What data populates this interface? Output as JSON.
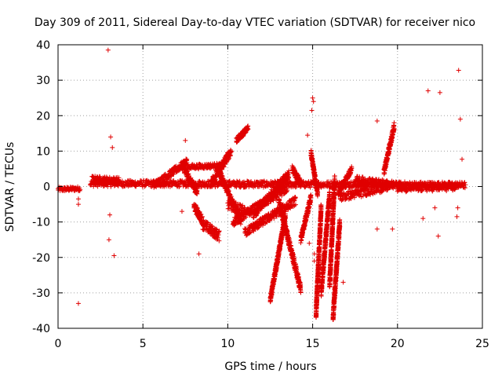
{
  "chart_data": {
    "type": "scatter",
    "title": "Day 309 of 2011, Sidereal Day-to-day VTEC variation (SDTVAR) for receiver nico",
    "xlabel": "GPS time / hours",
    "ylabel": "SDTVAR / TECUs",
    "xlim": [
      0,
      25
    ],
    "ylim": [
      -40,
      40
    ],
    "xticks": [
      0,
      5,
      10,
      15,
      20,
      25
    ],
    "yticks": [
      -40,
      -30,
      -20,
      -10,
      0,
      10,
      20,
      30,
      40
    ],
    "grid": true,
    "marker": "+",
    "series_color": "#e00000",
    "series": [
      {
        "name": "SDTVAR",
        "points": [
          [
            1.2,
            -33
          ],
          [
            2.95,
            38.5
          ],
          [
            3.0,
            -15
          ],
          [
            3.3,
            -19.5
          ],
          [
            3.1,
            14
          ],
          [
            3.2,
            11
          ],
          [
            3.05,
            -8
          ],
          [
            1.2,
            -5
          ],
          [
            1.2,
            -3.5
          ],
          [
            22.4,
            -14
          ],
          [
            22.5,
            26.5
          ],
          [
            21.8,
            27
          ],
          [
            23.6,
            32.8
          ],
          [
            23.7,
            19
          ],
          [
            23.8,
            7.7
          ],
          [
            23.5,
            -8.5
          ],
          [
            23.55,
            -6
          ],
          [
            18.8,
            18.5
          ],
          [
            19.8,
            18
          ],
          [
            15.0,
            25
          ],
          [
            15.05,
            24
          ],
          [
            14.7,
            14.5
          ],
          [
            14.95,
            21.5
          ],
          [
            8.3,
            -19
          ],
          [
            7.5,
            13
          ],
          [
            7.3,
            -7
          ],
          [
            14.8,
            -16
          ],
          [
            15.1,
            -19
          ],
          [
            16.8,
            -27
          ],
          [
            15.1,
            -21
          ],
          [
            19.7,
            -12
          ],
          [
            18.8,
            -12
          ],
          [
            20.5,
            -1.5
          ],
          [
            21.5,
            -9
          ],
          [
            22.2,
            -6
          ]
        ],
        "segments": [
          {
            "x": [
              0.0,
              1.3
            ],
            "y": [
              -0.8,
              -0.6
            ],
            "spread": 0.6
          },
          {
            "x": [
              1.9,
              24.0
            ],
            "y": [
              0.9,
              0.4
            ],
            "spread": 0.9
          },
          {
            "x": [
              2.0,
              3.6
            ],
            "y": [
              2.2,
              1.8
            ],
            "spread": 0.8
          },
          {
            "x": [
              5.6,
              7.6
            ],
            "y": [
              0.2,
              7.0
            ],
            "spread": 1.0
          },
          {
            "x": [
              7.3,
              8.2
            ],
            "y": [
              6.0,
              -1.8
            ],
            "spread": 1.0
          },
          {
            "x": [
              7.6,
              9.8
            ],
            "y": [
              5.5,
              6.0
            ],
            "spread": 0.7
          },
          {
            "x": [
              8.0,
              8.5
            ],
            "y": [
              -5.5,
              -9.5
            ],
            "spread": 1.2
          },
          {
            "x": [
              8.5,
              9.5
            ],
            "y": [
              -10.5,
              -14.0
            ],
            "spread": 1.5
          },
          {
            "x": [
              9.0,
              10.2
            ],
            "y": [
              1.0,
              10.0
            ],
            "spread": 1.2
          },
          {
            "x": [
              9.5,
              10.8
            ],
            "y": [
              4.0,
              -10.0
            ],
            "spread": 1.0
          },
          {
            "x": [
              10.0,
              11.0
            ],
            "y": [
              -5.0,
              -7.0
            ],
            "spread": 1.5
          },
          {
            "x": [
              10.5,
              11.2
            ],
            "y": [
              13.0,
              16.5
            ],
            "spread": 0.8
          },
          {
            "x": [
              10.3,
              13.5
            ],
            "y": [
              -10.0,
              -0.5
            ],
            "spread": 1.2
          },
          {
            "x": [
              11.0,
              14.0
            ],
            "y": [
              -13.0,
              -4.0
            ],
            "spread": 1.2
          },
          {
            "x": [
              11.5,
              13.6
            ],
            "y": [
              -8.0,
              3.5
            ],
            "spread": 1.2
          },
          {
            "x": [
              12.5,
              13.4
            ],
            "y": [
              -32.0,
              -8.0
            ],
            "spread": 1.0
          },
          {
            "x": [
              13.0,
              14.3
            ],
            "y": [
              -4.0,
              -29.0
            ],
            "spread": 1.2
          },
          {
            "x": [
              13.8,
              14.3
            ],
            "y": [
              5.0,
              1.0
            ],
            "spread": 1.0
          },
          {
            "x": [
              14.3,
              14.9
            ],
            "y": [
              -15.0,
              -3.0
            ],
            "spread": 1.0
          },
          {
            "x": [
              14.9,
              15.3
            ],
            "y": [
              9.5,
              -2.0
            ],
            "spread": 1.0
          },
          {
            "x": [
              15.2,
              15.5
            ],
            "y": [
              -36.0,
              -6.0
            ],
            "spread": 1.5
          },
          {
            "x": [
              15.5,
              16.0
            ],
            "y": [
              -30.0,
              -2.0
            ],
            "spread": 1.3
          },
          {
            "x": [
              16.0,
              16.3
            ],
            "y": [
              -28.0,
              2.0
            ],
            "spread": 1.5
          },
          {
            "x": [
              16.2,
              16.6
            ],
            "y": [
              -37.0,
              -10.0
            ],
            "spread": 1.5
          },
          {
            "x": [
              16.5,
              17.3
            ],
            "y": [
              -2.0,
              5.0
            ],
            "spread": 0.8
          },
          {
            "x": [
              16.6,
              19.5
            ],
            "y": [
              -3.0,
              0.0
            ],
            "spread": 1.2
          },
          {
            "x": [
              19.2,
              19.8
            ],
            "y": [
              4.0,
              17.0
            ],
            "spread": 1.0
          },
          {
            "x": [
              17.5,
              20.5
            ],
            "y": [
              2.0,
              0.0
            ],
            "spread": 1.0
          },
          {
            "x": [
              20.0,
              23.5
            ],
            "y": [
              -0.5,
              -0.2
            ],
            "spread": 1.0
          }
        ]
      }
    ]
  }
}
